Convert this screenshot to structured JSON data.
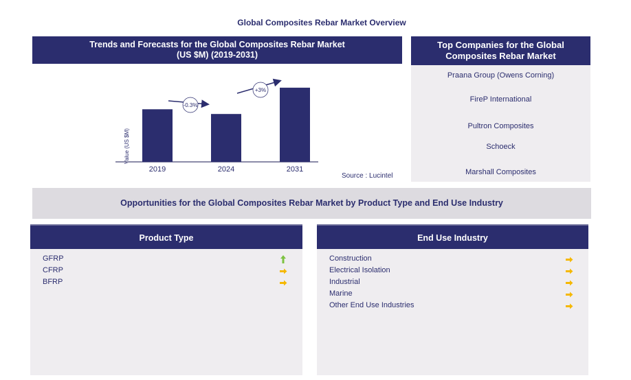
{
  "title": "Global Composites Rebar Market Overview",
  "trends_panel": {
    "title_line1": "Trends and Forecasts for the Global Composites Rebar Market",
    "title_line2": "(US $M) (2019-2031)",
    "source": "Source : Lucintel"
  },
  "chart_data": {
    "type": "bar",
    "title": "Trends and Forecasts for the Global Composites Rebar Market (US $M) (2019-2031)",
    "xlabel": "",
    "ylabel": "Value (US $M)",
    "categories": [
      "2019",
      "2024",
      "2031"
    ],
    "values": [
      78,
      71,
      110
    ],
    "values_note": "relative bar heights, no y-axis scale shown",
    "ylim": [
      0,
      120
    ],
    "grid": false,
    "bar_color": "#2b2d6e",
    "annotations": [
      {
        "label": "-0.3%",
        "from": "2019",
        "to": "2024"
      },
      {
        "label": "+3%",
        "from": "2024",
        "to": "2031"
      }
    ]
  },
  "companies": {
    "title_line1": "Top Companies for the Global",
    "title_line2": "Composites Rebar Market",
    "items": [
      "Praana Group (Owens Corning)",
      "FireP International",
      "Pultron Composites",
      "Schoeck",
      "Marshall Composites"
    ]
  },
  "opportunities": {
    "title": "Opportunities for the Global Composites Rebar Market by Product Type and End Use Industry",
    "product_type": {
      "title": "Product Type",
      "items": [
        {
          "label": "GFRP",
          "trend": "up-arrow-icon",
          "color": "#7dc242"
        },
        {
          "label": "CFRP",
          "trend": "right-arrow-icon",
          "color": "#f5b800"
        },
        {
          "label": "BFRP",
          "trend": "right-arrow-icon",
          "color": "#f5b800"
        }
      ]
    },
    "end_use": {
      "title": "End Use Industry",
      "items": [
        {
          "label": "Construction",
          "trend": "right-arrow-icon",
          "color": "#f5b800"
        },
        {
          "label": "Electrical Isolation",
          "trend": "right-arrow-icon",
          "color": "#f5b800"
        },
        {
          "label": "Industrial",
          "trend": "right-arrow-icon",
          "color": "#f5b800"
        },
        {
          "label": "Marine",
          "trend": "right-arrow-icon",
          "color": "#f5b800"
        },
        {
          "label": "Other End Use Industries",
          "trend": "right-arrow-icon",
          "color": "#f5b800"
        }
      ]
    }
  }
}
